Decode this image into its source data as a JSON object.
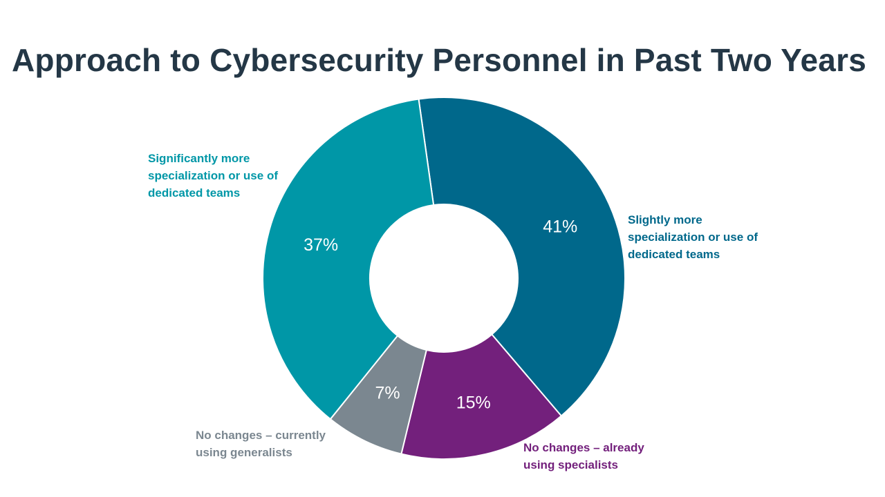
{
  "title": "Approach to Cybersecurity Personnel in Past Two Years",
  "chart_data": {
    "type": "pie",
    "donut": true,
    "title": "Approach to Cybersecurity Personnel in Past Two Years",
    "slices": [
      {
        "value_label": "41%",
        "value": 41,
        "label_lines": [
          "Slightly more",
          "specialization  or use of",
          "dedicated teams"
        ],
        "color": "#00688B"
      },
      {
        "value_label": "15%",
        "value": 15,
        "label_lines": [
          "No changes – already",
          "using specialists"
        ],
        "color": "#73207C"
      },
      {
        "value_label": "7%",
        "value": 7,
        "label_lines": [
          "No changes – currently",
          "using generalists"
        ],
        "color": "#7B8790"
      },
      {
        "value_label": "37%",
        "value": 37,
        "label_lines": [
          "Significantly  more",
          "specialization  or use of",
          "dedicated teams"
        ],
        "color": "#0097A7"
      }
    ],
    "legend": "none",
    "labels": "outside"
  }
}
